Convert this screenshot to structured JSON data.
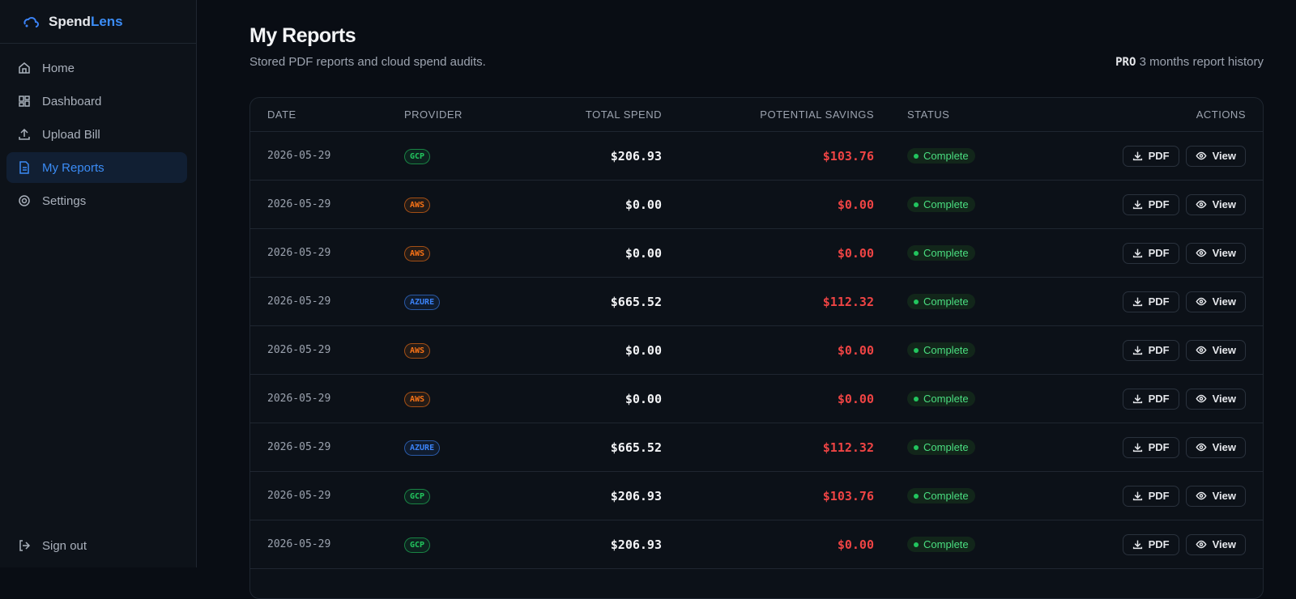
{
  "brand": {
    "first": "Spend",
    "second": "Lens"
  },
  "nav": {
    "items": [
      "Home",
      "Dashboard",
      "Upload Bill",
      "My Reports",
      "Settings"
    ],
    "active": 3,
    "sign_out": "Sign out"
  },
  "header": {
    "title": "My Reports",
    "subtitle": "Stored PDF reports and cloud spend audits.",
    "plan": "PRO",
    "plan_note": "3 months report history"
  },
  "table": {
    "columns": [
      "DATE",
      "PROVIDER",
      "TOTAL SPEND",
      "POTENTIAL SAVINGS",
      "STATUS",
      "ACTIONS"
    ],
    "rows": [
      {
        "date": "2026-05-29",
        "provider": "GCP",
        "provider_color": "#22c55e",
        "total": "$206.93",
        "savings": "$103.76",
        "status": "Complete",
        "pdf": "PDF",
        "view": "View"
      },
      {
        "date": "2026-05-29",
        "provider": "AWS",
        "provider_color": "#f97316",
        "total": "$0.00",
        "savings": "$0.00",
        "status": "Complete",
        "pdf": "PDF",
        "view": "View"
      },
      {
        "date": "2026-05-29",
        "provider": "AWS",
        "provider_color": "#f97316",
        "total": "$0.00",
        "savings": "$0.00",
        "status": "Complete",
        "pdf": "PDF",
        "view": "View"
      },
      {
        "date": "2026-05-29",
        "provider": "AZURE",
        "provider_color": "#3b82f6",
        "total": "$665.52",
        "savings": "$112.32",
        "status": "Complete",
        "pdf": "PDF",
        "view": "View"
      },
      {
        "date": "2026-05-29",
        "provider": "AWS",
        "provider_color": "#f97316",
        "total": "$0.00",
        "savings": "$0.00",
        "status": "Complete",
        "pdf": "PDF",
        "view": "View"
      },
      {
        "date": "2026-05-29",
        "provider": "AWS",
        "provider_color": "#f97316",
        "total": "$0.00",
        "savings": "$0.00",
        "status": "Complete",
        "pdf": "PDF",
        "view": "View"
      },
      {
        "date": "2026-05-29",
        "provider": "AZURE",
        "provider_color": "#3b82f6",
        "total": "$665.52",
        "savings": "$112.32",
        "status": "Complete",
        "pdf": "PDF",
        "view": "View"
      },
      {
        "date": "2026-05-29",
        "provider": "GCP",
        "provider_color": "#22c55e",
        "total": "$206.93",
        "savings": "$103.76",
        "status": "Complete",
        "pdf": "PDF",
        "view": "View"
      },
      {
        "date": "2026-05-29",
        "provider": "GCP",
        "provider_color": "#22c55e",
        "total": "$206.93",
        "savings": "$0.00",
        "status": "Complete",
        "pdf": "PDF",
        "view": "View"
      }
    ]
  }
}
